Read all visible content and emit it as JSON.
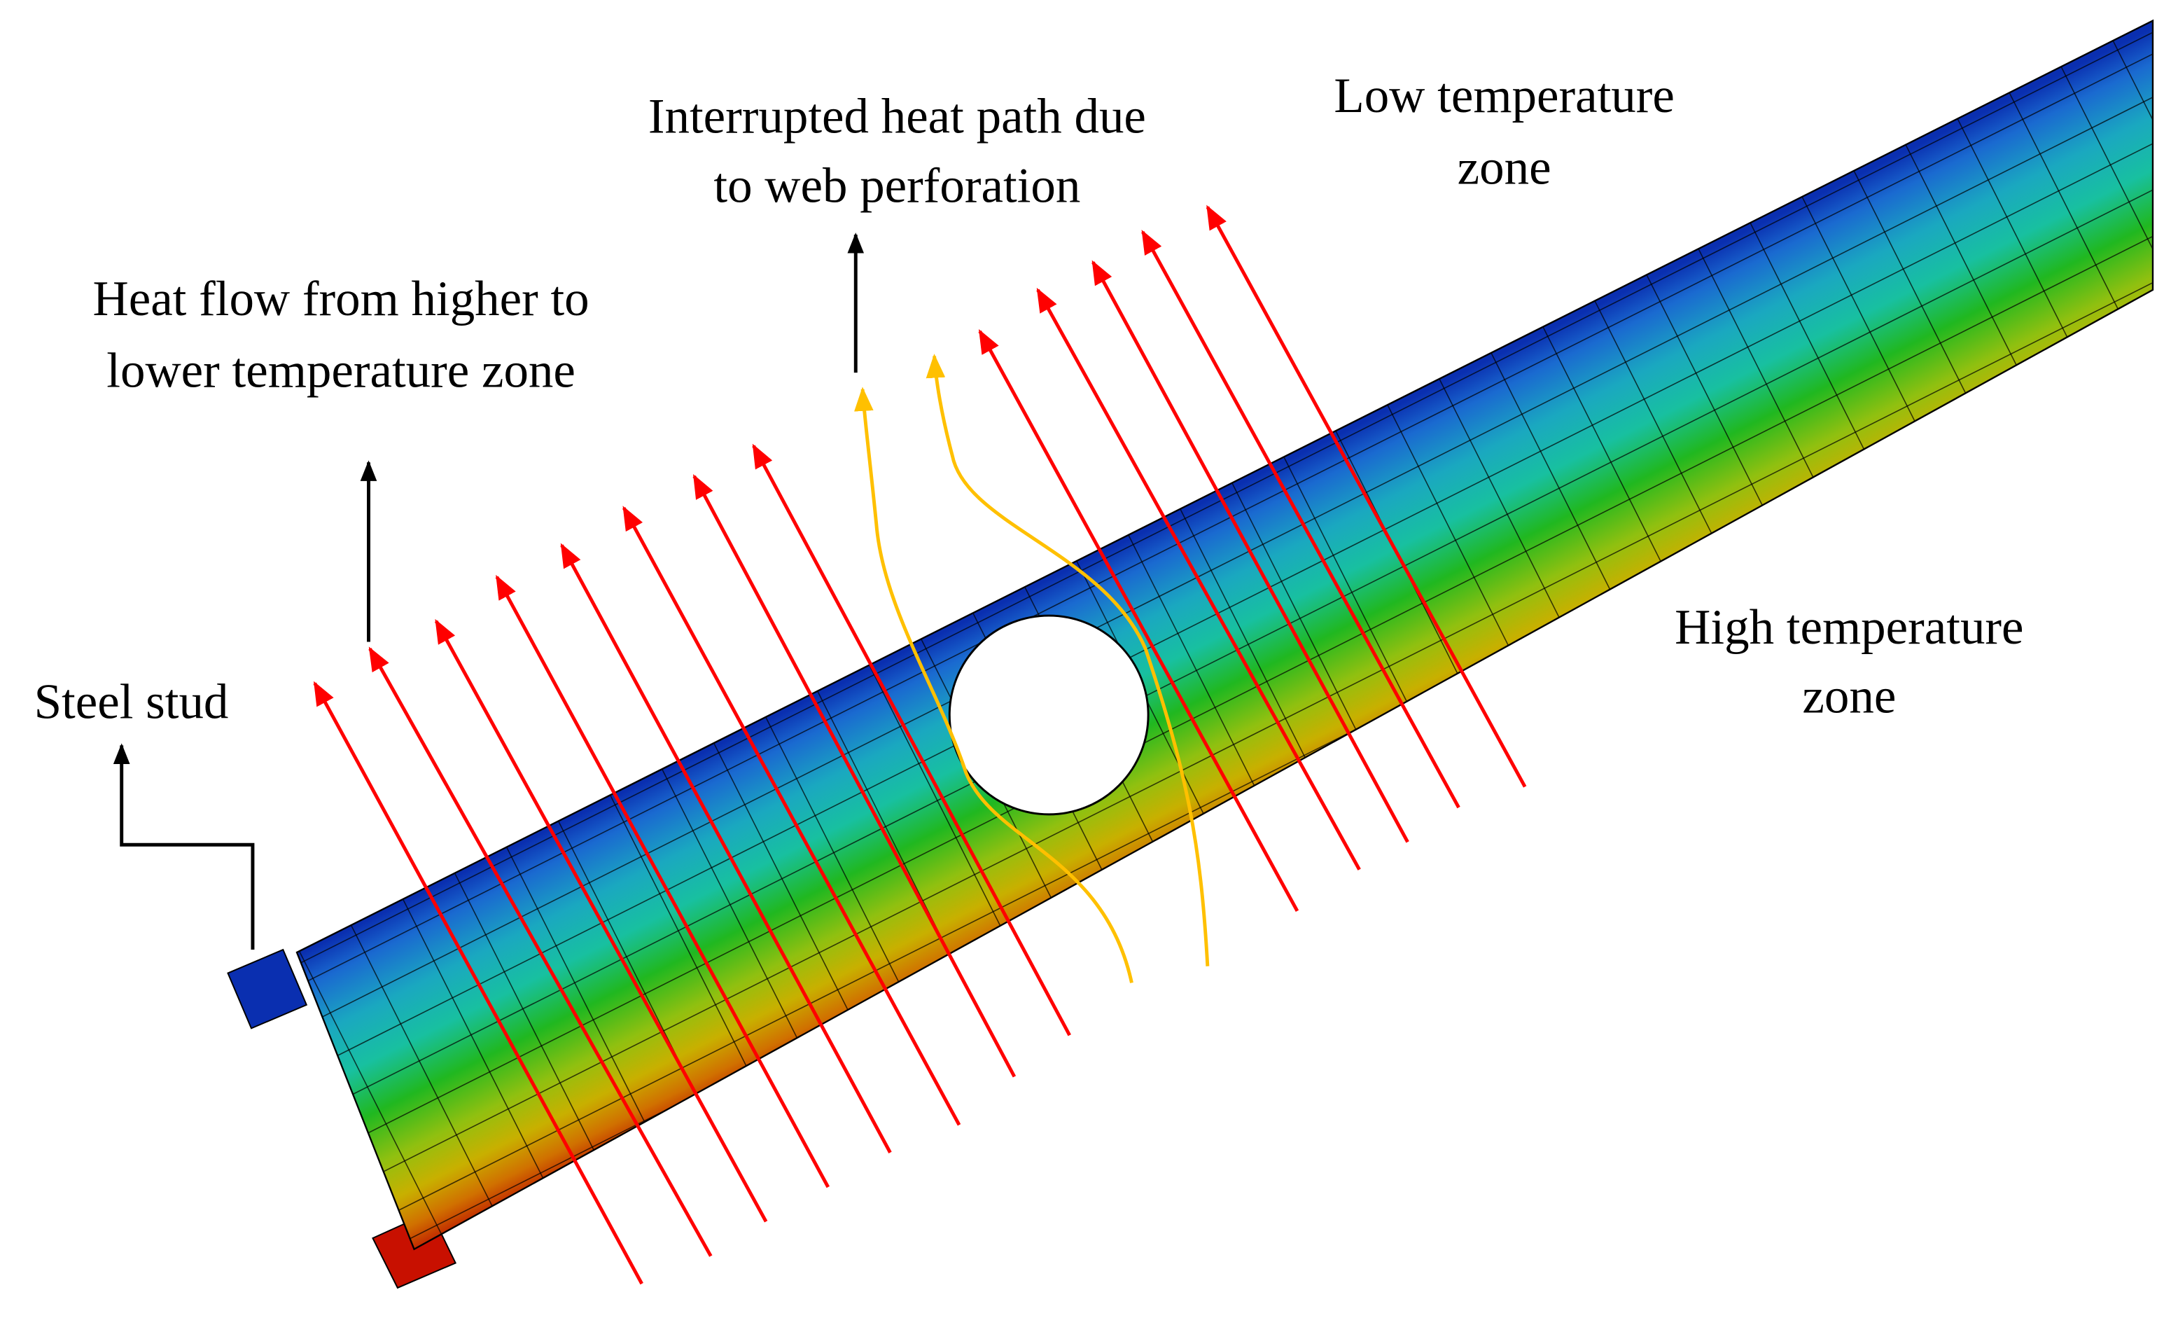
{
  "labels": {
    "steel_stud": "Steel stud",
    "heat_flow": [
      "Heat flow from higher to",
      "lower temperature zone"
    ],
    "interrupted": [
      "Interrupted heat path due",
      "to web perforation"
    ],
    "low_zone": [
      "Low temperature",
      "zone"
    ],
    "high_zone": [
      "High temperature",
      "zone"
    ]
  }
}
